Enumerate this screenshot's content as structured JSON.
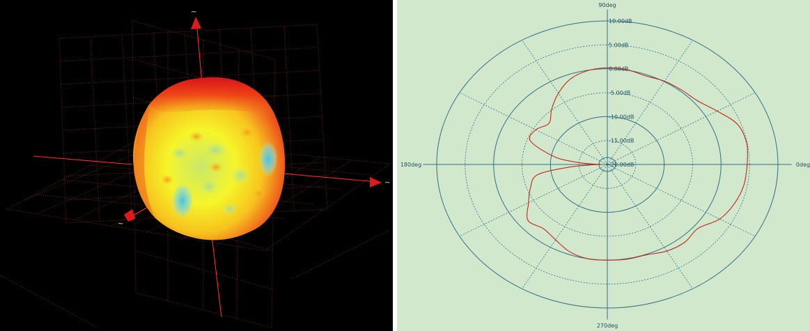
{
  "left_view": {
    "axis_end_labels": [
      "~",
      "~",
      "~"
    ]
  },
  "chart_data": {
    "type": "polar",
    "angle_labels": [
      "90deg",
      "180deg",
      "0deg",
      "270deg"
    ],
    "radial_labels": [
      "10.00dB",
      "5.00dB",
      "0.00dB",
      "-5.00dB",
      "-10.00dB",
      "-15.00dB",
      "-20.00dB"
    ],
    "rlim": [
      -20,
      10
    ],
    "angle_unit": "deg",
    "series": [
      {
        "color": "#c0281a",
        "theta": [
          0,
          10,
          20,
          30,
          40,
          50,
          60,
          70,
          80,
          90,
          100,
          110,
          120,
          130,
          140,
          150,
          160,
          170,
          175,
          178,
          180,
          182,
          185,
          190,
          200,
          210,
          220,
          230,
          240,
          250,
          260,
          270,
          280,
          290,
          300,
          310,
          320,
          330,
          340,
          350,
          360
        ],
        "r": [
          4.6,
          4.9,
          4.4,
          2.3,
          0.7,
          0.3,
          0.1,
          -0.3,
          0.1,
          0.2,
          -0.1,
          -1.0,
          -2.8,
          -4.8,
          -6.6,
          -5.5,
          -5.6,
          -10.5,
          -14.5,
          -17.5,
          -19.0,
          -17.0,
          -13.0,
          -7.5,
          -5.6,
          -4.0,
          -1.8,
          -2.5,
          -1.8,
          -0.6,
          0.0,
          0.0,
          0.1,
          0.1,
          0.9,
          1.2,
          0.8,
          2.8,
          3.8,
          4.4,
          4.6
        ]
      }
    ]
  }
}
